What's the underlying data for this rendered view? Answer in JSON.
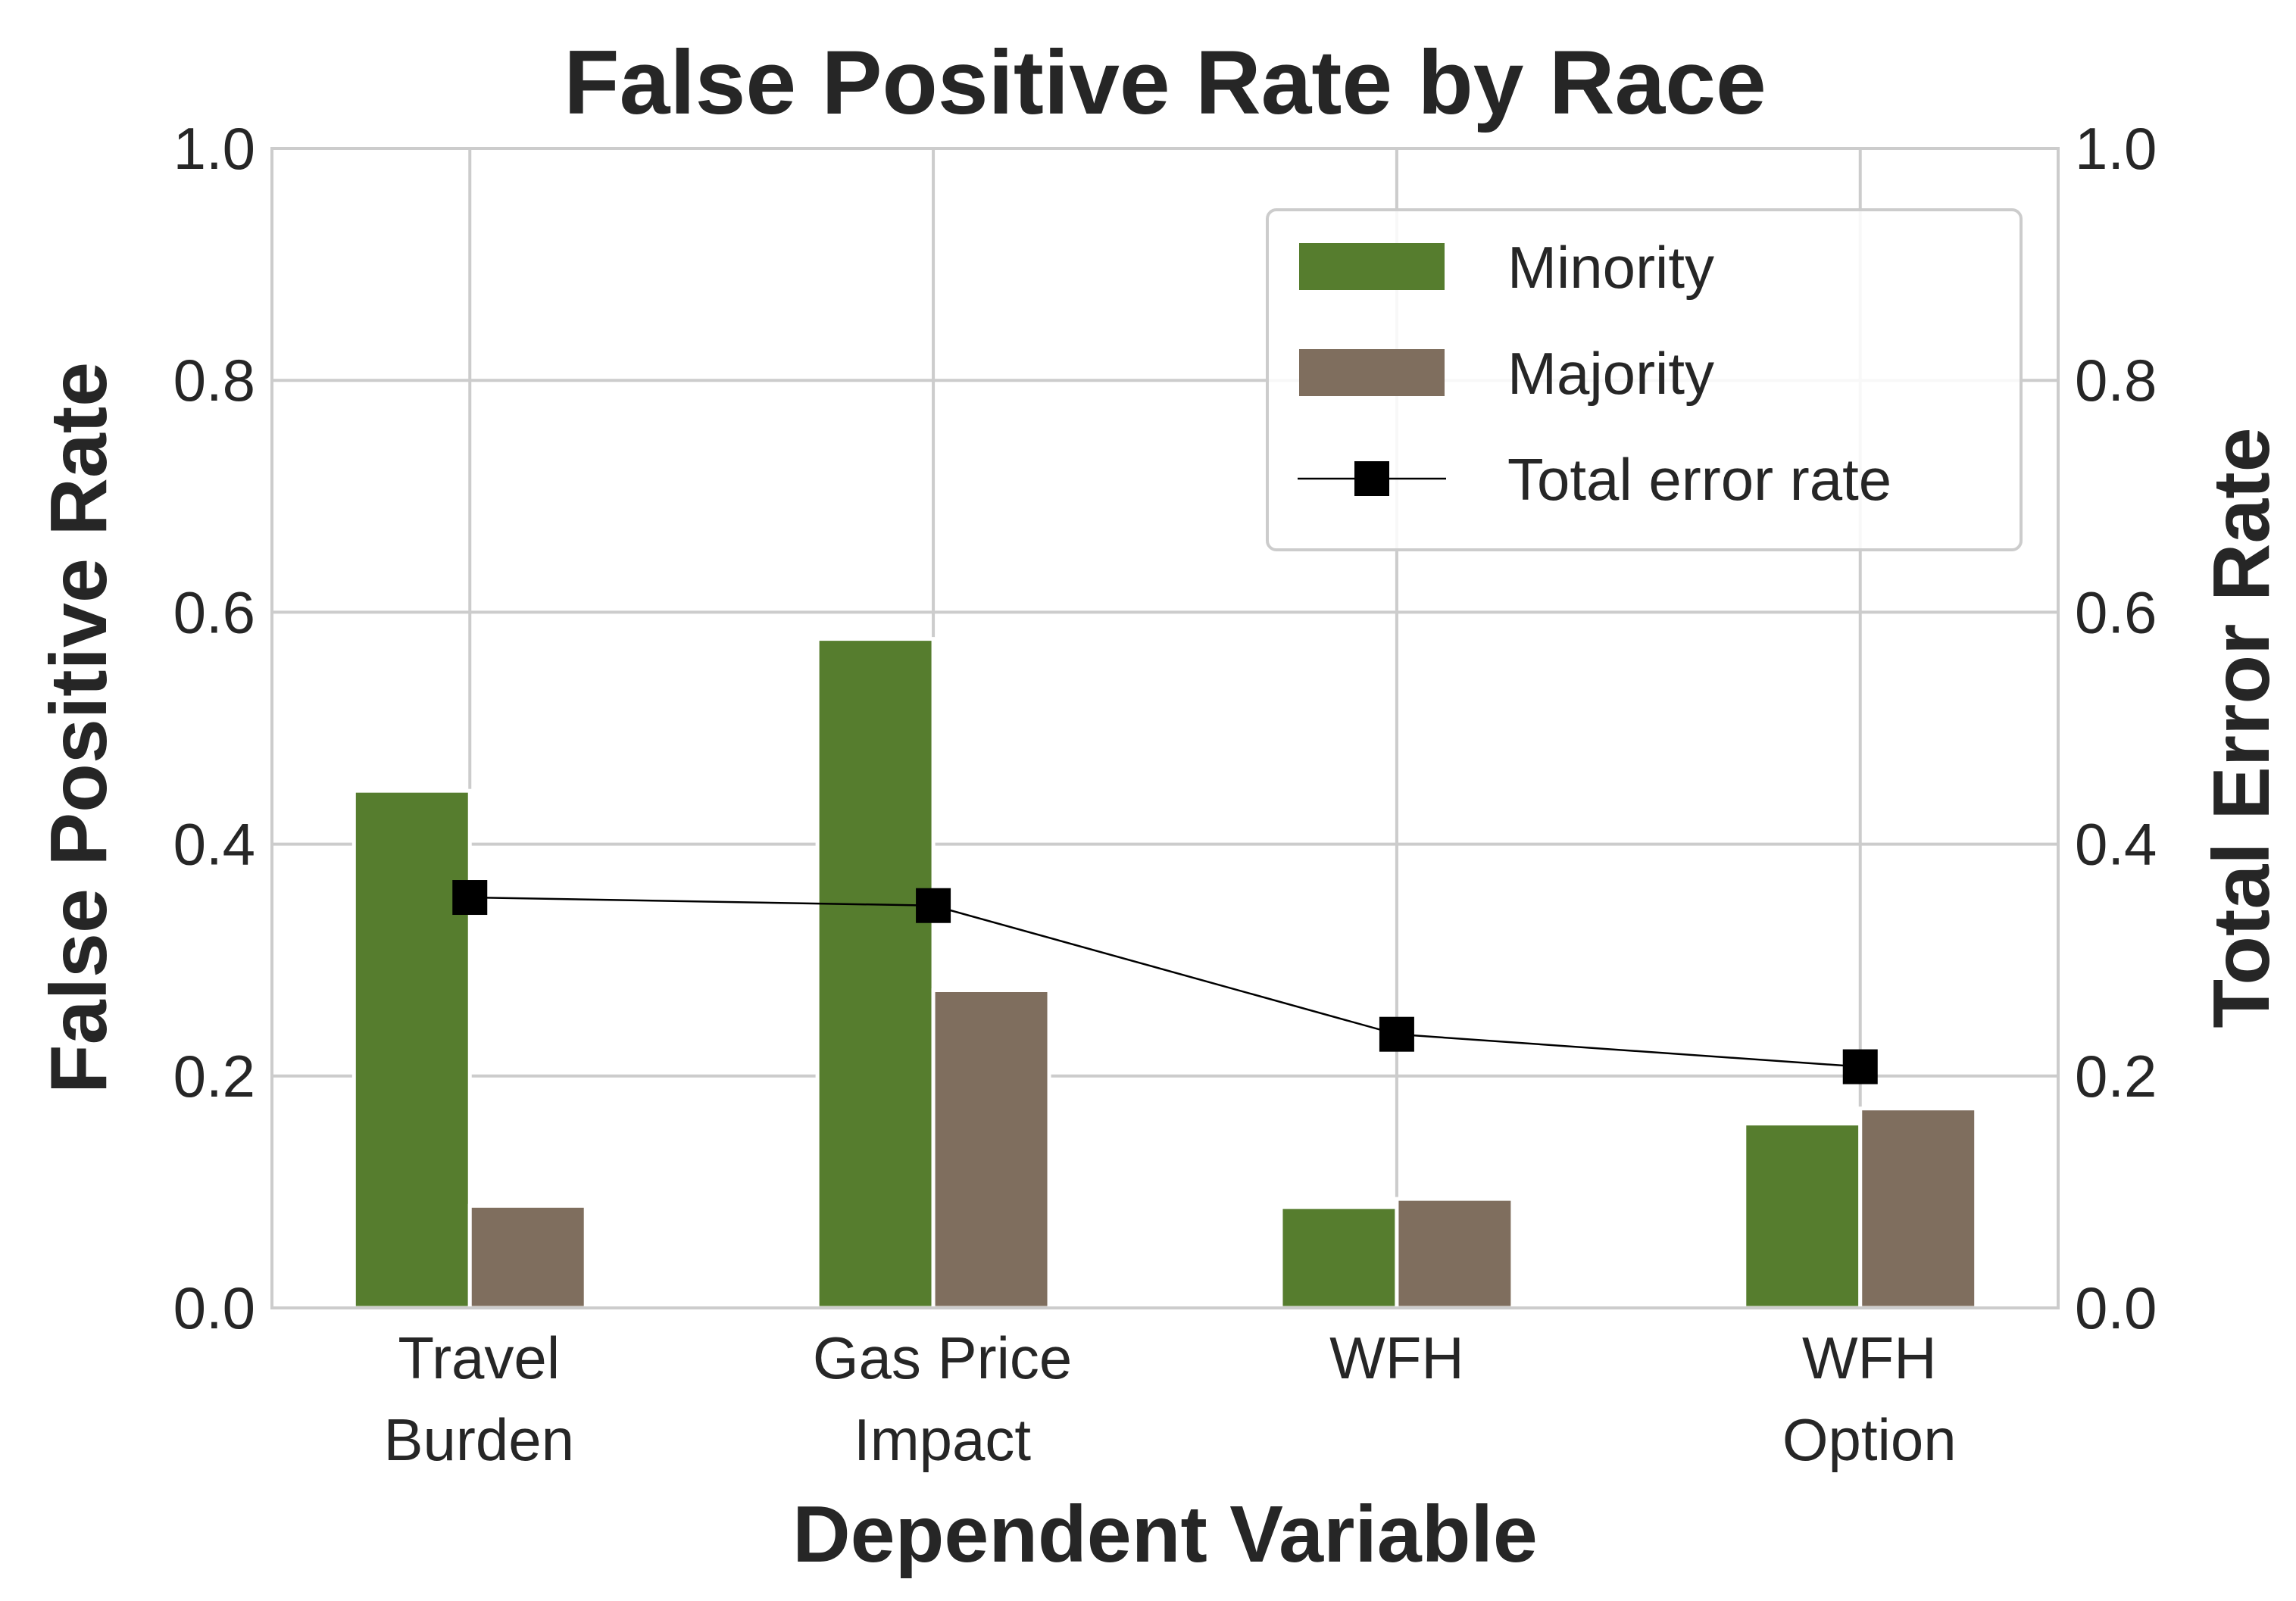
{
  "chart_data": {
    "type": "bar",
    "title": "False Positive Rate by Race",
    "xlabel": "Dependent Variable",
    "ylabel": "False Positive Rate",
    "ylabel_right": "Total Error Rate",
    "categories": [
      [
        "Travel",
        "Burden"
      ],
      [
        "Gas Price",
        "Impact"
      ],
      [
        "WFH"
      ],
      [
        "WFH",
        "Option"
      ]
    ],
    "ylim": [
      0,
      1.0
    ],
    "ylim_right": [
      0,
      1.0
    ],
    "yticks": [
      "0.0",
      "0.2",
      "0.4",
      "0.6",
      "0.8",
      "1.0"
    ],
    "grid": true,
    "legend_position": "upper-right",
    "series": [
      {
        "name": "Minority",
        "type": "bar",
        "color": "#567d2e",
        "values": [
          0.446,
          0.577,
          0.087,
          0.159
        ]
      },
      {
        "name": "Majority",
        "type": "bar",
        "color": "#7f6e5e",
        "values": [
          0.088,
          0.274,
          0.094,
          0.172
        ]
      },
      {
        "name": "Total error rate",
        "type": "line",
        "axis": "right",
        "color": "#000000",
        "marker": "square",
        "values": [
          0.354,
          0.347,
          0.236,
          0.208
        ]
      }
    ]
  }
}
